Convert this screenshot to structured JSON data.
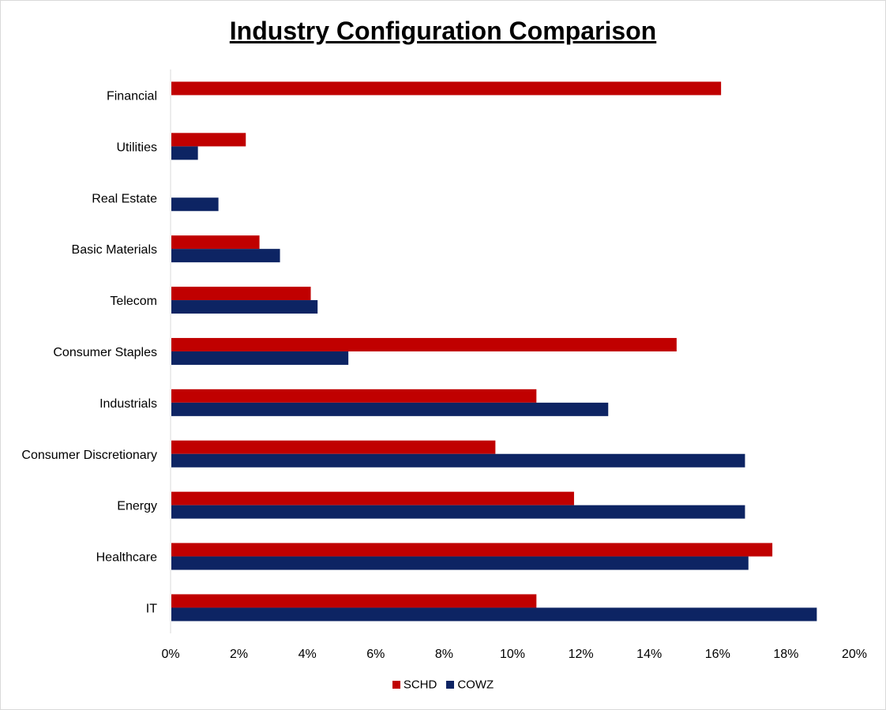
{
  "chart_data": {
    "type": "bar",
    "orientation": "horizontal",
    "title": "Industry Configuration Comparison",
    "xlabel": "",
    "ylabel": "",
    "categories": [
      "Financial",
      "Utilities",
      "Real Estate",
      "Basic Materials",
      "Telecom",
      "Consumer Staples",
      "Industrials",
      "Consumer Discretionary",
      "Energy",
      "Healthcare",
      "IT"
    ],
    "series": [
      {
        "name": "SCHD",
        "color": "#c00000",
        "values": [
          16.1,
          2.2,
          0,
          2.6,
          4.1,
          14.8,
          10.7,
          9.5,
          11.8,
          17.6,
          10.7
        ]
      },
      {
        "name": "COWZ",
        "color": "#0d2463",
        "values": [
          0,
          0.8,
          1.4,
          3.2,
          4.3,
          5.2,
          12.8,
          16.8,
          16.8,
          16.9,
          18.9
        ]
      }
    ],
    "xlim": [
      0,
      20
    ],
    "x_ticks": [
      "0%",
      "2%",
      "4%",
      "6%",
      "8%",
      "10%",
      "12%",
      "14%",
      "16%",
      "18%",
      "20%"
    ],
    "grid": false,
    "legend_position": "bottom"
  }
}
